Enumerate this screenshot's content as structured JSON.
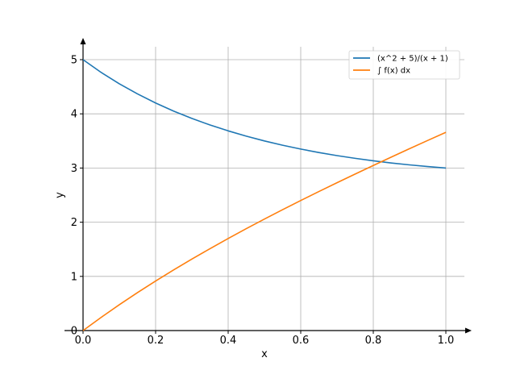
{
  "chart_data": {
    "type": "line",
    "title": "",
    "xlabel": "x",
    "ylabel": "y",
    "xlim": [
      0.0,
      1.05
    ],
    "ylim": [
      0,
      5.3
    ],
    "grid": true,
    "legend_position": "top-right",
    "x_ticks": [
      0.0,
      0.2,
      0.4,
      0.6,
      0.8,
      1.0
    ],
    "x_tick_labels": [
      "0.0",
      "0.2",
      "0.4",
      "0.6",
      "0.8",
      "1.0"
    ],
    "y_ticks": [
      0,
      1,
      2,
      3,
      4,
      5
    ],
    "y_tick_labels": [
      "0",
      "1",
      "2",
      "3",
      "4",
      "5"
    ],
    "x": [
      0.0,
      0.05,
      0.1,
      0.15,
      0.2,
      0.25,
      0.3,
      0.35,
      0.4,
      0.45,
      0.5,
      0.55,
      0.6,
      0.65,
      0.7,
      0.75,
      0.8,
      0.85,
      0.9,
      0.95,
      1.0
    ],
    "series": [
      {
        "name": "(x^2 + 5)/(x + 1)",
        "color": "#1f77b4",
        "values": [
          5.0,
          4.764,
          4.555,
          4.368,
          4.2,
          4.05,
          3.915,
          3.794,
          3.686,
          3.588,
          3.5,
          3.421,
          3.35,
          3.286,
          3.229,
          3.179,
          3.133,
          3.093,
          3.058,
          3.027,
          3.0
        ]
      },
      {
        "name": "∫ f(x) dx",
        "color": "#ff7f0e",
        "values": [
          0.0,
          0.244,
          0.477,
          0.7,
          0.914,
          1.12,
          1.319,
          1.512,
          1.699,
          1.881,
          2.058,
          2.231,
          2.4,
          2.566,
          2.729,
          2.889,
          3.047,
          3.203,
          3.357,
          3.509,
          3.659
        ]
      }
    ]
  }
}
